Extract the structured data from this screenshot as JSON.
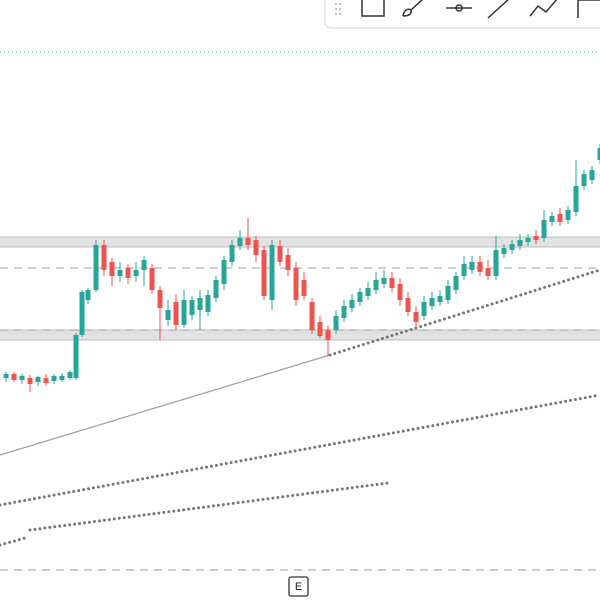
{
  "event_marker": {
    "label": "E"
  }
}
